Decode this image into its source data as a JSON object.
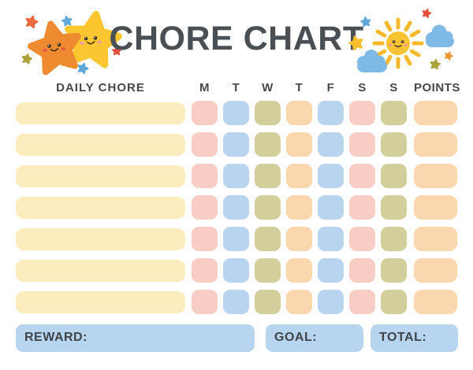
{
  "title": "CHORE CHART",
  "table": {
    "chore_column_header": "DAILY CHORE",
    "day_headers": [
      "M",
      "T",
      "W",
      "T",
      "F",
      "S",
      "S"
    ],
    "points_header": "POINTS",
    "row_count": 7
  },
  "footer": {
    "reward_label": "REWARD:",
    "goal_label": "GOAL:",
    "total_label": "TOTAL:"
  },
  "colors": {
    "chore_bar": "#fdedbe",
    "day_cells": [
      "#f7cdc5",
      "#b8d4ee",
      "#d3cf9d",
      "#fbd7b0",
      "#b8d4ee",
      "#f7cdc5",
      "#d3cf9d"
    ],
    "points_cell": "#fbd7b0",
    "footer_box": "#b7d5ef",
    "heading_text": "#45494e",
    "title_text": "#4a4f54"
  },
  "decorations": {
    "left": "two-smiling-stars-with-sparkles",
    "right": "smiling-sun-with-clouds-and-sparkles"
  }
}
